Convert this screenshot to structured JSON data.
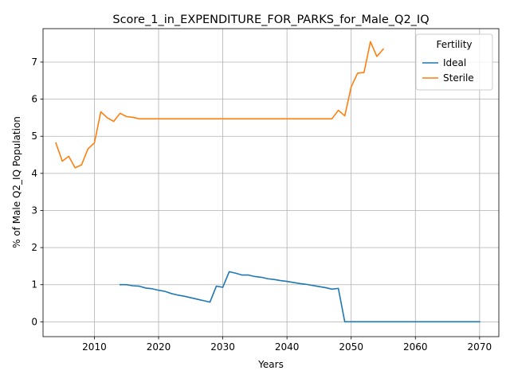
{
  "chart_data": {
    "type": "line",
    "title": "Score_1_in_EXPENDITURE_FOR_PARKS_for_Male_Q2_IQ",
    "xlabel": "Years",
    "ylabel": "% of Male Q2_IQ Population",
    "xlim": [
      2002,
      2073
    ],
    "ylim": [
      -0.4,
      7.9
    ],
    "xticks": [
      2010,
      2020,
      2030,
      2040,
      2050,
      2060,
      2070
    ],
    "yticks": [
      0,
      1,
      2,
      3,
      4,
      5,
      6,
      7
    ],
    "grid": true,
    "legend": {
      "title": "Fertility",
      "placement": "top-right"
    },
    "series": [
      {
        "name": "Ideal",
        "color": "#1f77b4",
        "x": [
          2014,
          2015,
          2016,
          2017,
          2018,
          2019,
          2020,
          2021,
          2022,
          2023,
          2024,
          2025,
          2026,
          2027,
          2028,
          2029,
          2030,
          2031,
          2032,
          2033,
          2034,
          2035,
          2036,
          2037,
          2038,
          2039,
          2040,
          2041,
          2042,
          2043,
          2044,
          2045,
          2046,
          2047,
          2048,
          2049,
          2050,
          2055,
          2060,
          2065,
          2070
        ],
        "y": [
          1.0,
          1.0,
          0.97,
          0.96,
          0.91,
          0.89,
          0.85,
          0.82,
          0.76,
          0.72,
          0.69,
          0.65,
          0.61,
          0.57,
          0.53,
          0.96,
          0.93,
          1.35,
          1.31,
          1.26,
          1.26,
          1.22,
          1.2,
          1.16,
          1.14,
          1.11,
          1.09,
          1.06,
          1.03,
          1.01,
          0.98,
          0.95,
          0.92,
          0.88,
          0.9,
          0.0,
          0.0,
          0.0,
          0.0,
          0.0,
          0.0
        ]
      },
      {
        "name": "Sterile",
        "color": "#ff7f0e",
        "x": [
          2004,
          2005,
          2006,
          2007,
          2008,
          2009,
          2010,
          2011,
          2012,
          2013,
          2014,
          2015,
          2016,
          2017,
          2018,
          2020,
          2025,
          2030,
          2035,
          2040,
          2045,
          2047,
          2048,
          2049,
          2050,
          2051,
          2052,
          2053,
          2054,
          2055
        ],
        "y": [
          4.82,
          4.33,
          4.46,
          4.15,
          4.23,
          4.66,
          4.82,
          5.66,
          5.5,
          5.4,
          5.62,
          5.53,
          5.51,
          5.47,
          5.47,
          5.47,
          5.47,
          5.47,
          5.47,
          5.47,
          5.47,
          5.47,
          5.7,
          5.55,
          6.33,
          6.7,
          6.72,
          7.55,
          7.15,
          7.35
        ]
      }
    ]
  }
}
